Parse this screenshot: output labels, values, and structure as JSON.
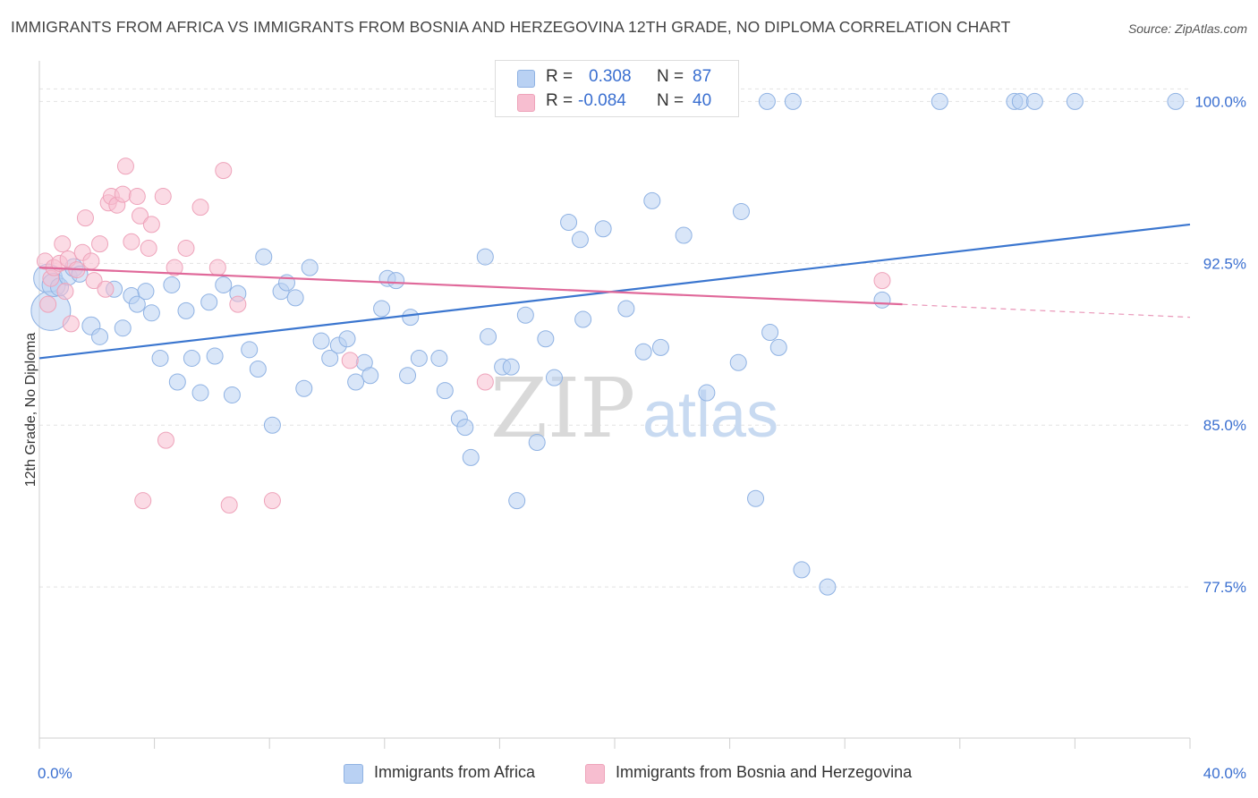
{
  "title": "IMMIGRANTS FROM AFRICA VS IMMIGRANTS FROM BOSNIA AND HERZEGOVINA 12TH GRADE, NO DIPLOMA CORRELATION CHART",
  "source": "Source: ZipAtlas.com",
  "legend_stats": {
    "africa": {
      "r_label": "R =",
      "r_value": "0.308",
      "n_label": "N =",
      "n_value": "87"
    },
    "bosnia": {
      "r_label": "R =",
      "r_value": "-0.084",
      "n_label": "N =",
      "n_value": "40"
    }
  },
  "colors": {
    "africa_fill": "#b9d1f3",
    "africa_stroke": "#8fb2e3",
    "africa_line": "#3b76cf",
    "bosnia_fill": "#f7bed0",
    "bosnia_stroke": "#eea3ba",
    "bosnia_line": "#e0699a",
    "axis_text": "#3a6fd0",
    "grid": "#e3e3e3"
  },
  "chart_data": {
    "type": "scatter",
    "title": "IMMIGRANTS FROM AFRICA VS IMMIGRANTS FROM BOSNIA AND HERZEGOVINA 12TH GRADE, NO DIPLOMA CORRELATION CHART",
    "xlabel": "",
    "ylabel": "12th Grade, No Diploma",
    "xlim": [
      0,
      40
    ],
    "ylim": [
      70.5,
      101.8
    ],
    "x_tick_labels": [
      "0.0%",
      "40.0%"
    ],
    "y_ticks": [
      77.5,
      85.0,
      92.5,
      100.0
    ],
    "y_tick_labels": [
      "77.5%",
      "85.0%",
      "92.5%",
      "100.0%"
    ],
    "grid": true,
    "legend_position": "top-center",
    "watermark": {
      "zip": "ZIP",
      "atlas": "atlas"
    },
    "series": [
      {
        "name": "Immigrants from Africa",
        "r": 0.308,
        "n": 87,
        "trend": {
          "x": [
            0,
            40
          ],
          "y": [
            88.1,
            94.3
          ]
        },
        "points": [
          {
            "x": 0.3,
            "y": 91.8,
            "s": 16
          },
          {
            "x": 0.4,
            "y": 90.3,
            "s": 22
          },
          {
            "x": 0.5,
            "y": 91.5,
            "s": 13
          },
          {
            "x": 0.7,
            "y": 91.4,
            "s": 10
          },
          {
            "x": 1.0,
            "y": 91.9,
            "s": 10
          },
          {
            "x": 1.2,
            "y": 92.3,
            "s": 10
          },
          {
            "x": 1.4,
            "y": 92.0,
            "s": 9
          },
          {
            "x": 1.8,
            "y": 89.6,
            "s": 10
          },
          {
            "x": 2.1,
            "y": 89.1,
            "s": 9
          },
          {
            "x": 2.6,
            "y": 91.3,
            "s": 9
          },
          {
            "x": 2.9,
            "y": 89.5,
            "s": 9
          },
          {
            "x": 3.2,
            "y": 91.0,
            "s": 9
          },
          {
            "x": 3.4,
            "y": 90.6,
            "s": 9
          },
          {
            "x": 3.7,
            "y": 91.2,
            "s": 9
          },
          {
            "x": 3.9,
            "y": 90.2,
            "s": 9
          },
          {
            "x": 4.2,
            "y": 88.1,
            "s": 9
          },
          {
            "x": 4.6,
            "y": 91.5,
            "s": 9
          },
          {
            "x": 4.8,
            "y": 87.0,
            "s": 9
          },
          {
            "x": 5.1,
            "y": 90.3,
            "s": 9
          },
          {
            "x": 5.3,
            "y": 88.1,
            "s": 9
          },
          {
            "x": 5.6,
            "y": 86.5,
            "s": 9
          },
          {
            "x": 5.9,
            "y": 90.7,
            "s": 9
          },
          {
            "x": 6.1,
            "y": 88.2,
            "s": 9
          },
          {
            "x": 6.4,
            "y": 91.5,
            "s": 9
          },
          {
            "x": 6.7,
            "y": 86.4,
            "s": 9
          },
          {
            "x": 6.9,
            "y": 91.1,
            "s": 9
          },
          {
            "x": 7.3,
            "y": 88.5,
            "s": 9
          },
          {
            "x": 7.6,
            "y": 87.6,
            "s": 9
          },
          {
            "x": 7.8,
            "y": 92.8,
            "s": 9
          },
          {
            "x": 8.1,
            "y": 85.0,
            "s": 9
          },
          {
            "x": 8.4,
            "y": 91.2,
            "s": 9
          },
          {
            "x": 8.6,
            "y": 91.6,
            "s": 9
          },
          {
            "x": 8.9,
            "y": 90.9,
            "s": 9
          },
          {
            "x": 9.2,
            "y": 86.7,
            "s": 9
          },
          {
            "x": 9.4,
            "y": 92.3,
            "s": 9
          },
          {
            "x": 9.8,
            "y": 88.9,
            "s": 9
          },
          {
            "x": 10.1,
            "y": 88.1,
            "s": 9
          },
          {
            "x": 10.4,
            "y": 88.7,
            "s": 9
          },
          {
            "x": 10.7,
            "y": 89.0,
            "s": 9
          },
          {
            "x": 11.0,
            "y": 87.0,
            "s": 9
          },
          {
            "x": 11.3,
            "y": 87.9,
            "s": 9
          },
          {
            "x": 11.5,
            "y": 87.3,
            "s": 9
          },
          {
            "x": 11.9,
            "y": 90.4,
            "s": 9
          },
          {
            "x": 12.1,
            "y": 91.8,
            "s": 9
          },
          {
            "x": 12.4,
            "y": 91.7,
            "s": 9
          },
          {
            "x": 12.8,
            "y": 87.3,
            "s": 9
          },
          {
            "x": 12.9,
            "y": 90.0,
            "s": 9
          },
          {
            "x": 13.2,
            "y": 88.1,
            "s": 9
          },
          {
            "x": 13.9,
            "y": 88.1,
            "s": 9
          },
          {
            "x": 14.1,
            "y": 86.6,
            "s": 9
          },
          {
            "x": 14.6,
            "y": 85.3,
            "s": 9
          },
          {
            "x": 14.8,
            "y": 84.9,
            "s": 9
          },
          {
            "x": 15.0,
            "y": 83.5,
            "s": 9
          },
          {
            "x": 15.5,
            "y": 92.8,
            "s": 9
          },
          {
            "x": 15.6,
            "y": 89.1,
            "s": 9
          },
          {
            "x": 16.1,
            "y": 87.7,
            "s": 9
          },
          {
            "x": 16.4,
            "y": 87.7,
            "s": 9
          },
          {
            "x": 16.6,
            "y": 81.5,
            "s": 9
          },
          {
            "x": 16.9,
            "y": 90.1,
            "s": 9
          },
          {
            "x": 17.3,
            "y": 84.2,
            "s": 9
          },
          {
            "x": 17.6,
            "y": 89.0,
            "s": 9
          },
          {
            "x": 17.9,
            "y": 87.2,
            "s": 9
          },
          {
            "x": 18.4,
            "y": 94.4,
            "s": 9
          },
          {
            "x": 18.8,
            "y": 93.6,
            "s": 9
          },
          {
            "x": 18.9,
            "y": 89.9,
            "s": 9
          },
          {
            "x": 19.6,
            "y": 94.1,
            "s": 9
          },
          {
            "x": 20.4,
            "y": 90.4,
            "s": 9
          },
          {
            "x": 21.0,
            "y": 88.4,
            "s": 9
          },
          {
            "x": 21.3,
            "y": 95.4,
            "s": 9
          },
          {
            "x": 21.6,
            "y": 88.6,
            "s": 9
          },
          {
            "x": 22.4,
            "y": 93.8,
            "s": 9
          },
          {
            "x": 22.2,
            "y": 100.0,
            "s": 9
          },
          {
            "x": 23.2,
            "y": 86.5,
            "s": 9
          },
          {
            "x": 24.3,
            "y": 87.9,
            "s": 9
          },
          {
            "x": 24.4,
            "y": 94.9,
            "s": 9
          },
          {
            "x": 24.9,
            "y": 81.6,
            "s": 9
          },
          {
            "x": 25.4,
            "y": 89.3,
            "s": 9
          },
          {
            "x": 25.7,
            "y": 88.6,
            "s": 9
          },
          {
            "x": 26.2,
            "y": 100.0,
            "s": 9
          },
          {
            "x": 25.3,
            "y": 100.0,
            "s": 9
          },
          {
            "x": 26.5,
            "y": 78.3,
            "s": 9
          },
          {
            "x": 27.4,
            "y": 77.5,
            "s": 9
          },
          {
            "x": 29.3,
            "y": 90.8,
            "s": 9
          },
          {
            "x": 31.3,
            "y": 100.0,
            "s": 9
          },
          {
            "x": 33.9,
            "y": 100.0,
            "s": 9
          },
          {
            "x": 34.1,
            "y": 100.0,
            "s": 9
          },
          {
            "x": 34.6,
            "y": 100.0,
            "s": 9
          },
          {
            "x": 36.0,
            "y": 100.0,
            "s": 9
          },
          {
            "x": 39.5,
            "y": 100.0,
            "s": 9
          }
        ]
      },
      {
        "name": "Immigrants from Bosnia and Herzegovina",
        "r": -0.084,
        "n": 40,
        "trend": {
          "x": [
            0,
            30
          ],
          "y": [
            92.3,
            90.6
          ]
        },
        "trend_dashed": {
          "x": [
            30,
            40
          ],
          "y": [
            90.6,
            90.0
          ]
        },
        "points": [
          {
            "x": 0.2,
            "y": 92.6,
            "s": 9
          },
          {
            "x": 0.3,
            "y": 90.6,
            "s": 9
          },
          {
            "x": 0.4,
            "y": 91.8,
            "s": 9
          },
          {
            "x": 0.5,
            "y": 92.3,
            "s": 9
          },
          {
            "x": 0.7,
            "y": 92.5,
            "s": 9
          },
          {
            "x": 0.8,
            "y": 93.4,
            "s": 9
          },
          {
            "x": 0.9,
            "y": 91.2,
            "s": 9
          },
          {
            "x": 1.0,
            "y": 92.7,
            "s": 9
          },
          {
            "x": 1.1,
            "y": 89.7,
            "s": 9
          },
          {
            "x": 1.3,
            "y": 92.2,
            "s": 9
          },
          {
            "x": 1.5,
            "y": 93.0,
            "s": 9
          },
          {
            "x": 1.6,
            "y": 94.6,
            "s": 9
          },
          {
            "x": 1.8,
            "y": 92.6,
            "s": 9
          },
          {
            "x": 1.9,
            "y": 91.7,
            "s": 9
          },
          {
            "x": 2.1,
            "y": 93.4,
            "s": 9
          },
          {
            "x": 2.3,
            "y": 91.3,
            "s": 9
          },
          {
            "x": 2.4,
            "y": 95.3,
            "s": 9
          },
          {
            "x": 2.5,
            "y": 95.6,
            "s": 9
          },
          {
            "x": 2.7,
            "y": 95.2,
            "s": 9
          },
          {
            "x": 2.9,
            "y": 95.7,
            "s": 9
          },
          {
            "x": 3.0,
            "y": 97.0,
            "s": 9
          },
          {
            "x": 3.2,
            "y": 93.5,
            "s": 9
          },
          {
            "x": 3.4,
            "y": 95.6,
            "s": 9
          },
          {
            "x": 3.5,
            "y": 94.7,
            "s": 9
          },
          {
            "x": 3.6,
            "y": 81.5,
            "s": 9
          },
          {
            "x": 3.8,
            "y": 93.2,
            "s": 9
          },
          {
            "x": 3.9,
            "y": 94.3,
            "s": 9
          },
          {
            "x": 4.3,
            "y": 95.6,
            "s": 9
          },
          {
            "x": 4.4,
            "y": 84.3,
            "s": 9
          },
          {
            "x": 4.7,
            "y": 92.3,
            "s": 9
          },
          {
            "x": 5.1,
            "y": 93.2,
            "s": 9
          },
          {
            "x": 5.6,
            "y": 95.1,
            "s": 9
          },
          {
            "x": 6.2,
            "y": 92.3,
            "s": 9
          },
          {
            "x": 6.4,
            "y": 96.8,
            "s": 9
          },
          {
            "x": 6.6,
            "y": 81.3,
            "s": 9
          },
          {
            "x": 6.9,
            "y": 90.6,
            "s": 9
          },
          {
            "x": 8.1,
            "y": 81.5,
            "s": 9
          },
          {
            "x": 10.8,
            "y": 88.0,
            "s": 9
          },
          {
            "x": 15.5,
            "y": 87.0,
            "s": 9
          },
          {
            "x": 29.3,
            "y": 91.7,
            "s": 9
          }
        ]
      }
    ]
  }
}
